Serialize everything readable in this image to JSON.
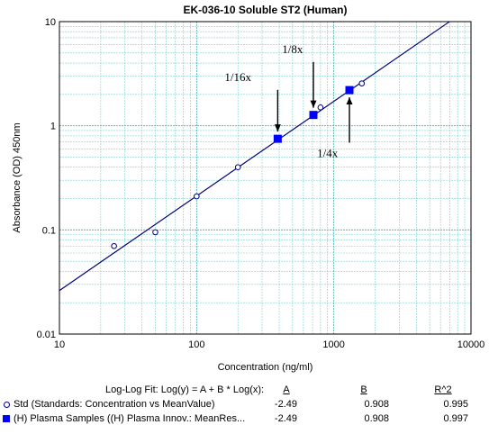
{
  "chart_data": {
    "type": "scatter",
    "title": "EK-036-10 Soluble ST2 (Human)",
    "xlabel": "Concentration (ng/ml)",
    "ylabel": "Absorbance (OD) 450nm",
    "xscale": "log",
    "yscale": "log",
    "xlim": [
      10,
      10000
    ],
    "ylim": [
      0.01,
      10
    ],
    "x_ticks": [
      "10",
      "100",
      "1000",
      "10000"
    ],
    "y_ticks": [
      "0.01",
      "0.1",
      "1",
      "10"
    ],
    "grid": true,
    "series": [
      {
        "name": "Std (Standards: Concentration vs MeanValue)",
        "marker": "open-circle",
        "color": "#000080",
        "x": [
          25,
          50,
          100,
          200,
          800,
          1600
        ],
        "y": [
          0.07,
          0.095,
          0.21,
          0.4,
          1.5,
          2.55
        ]
      },
      {
        "name": "(H) Plasma Samples ((H) Plasma Innov.: MeanRes...",
        "marker": "filled-square",
        "color": "#0000ff",
        "x": [
          390,
          710,
          1300
        ],
        "y": [
          0.75,
          1.27,
          2.2
        ]
      }
    ],
    "fit_lines": [
      {
        "A": -2.49,
        "B": 0.908,
        "color": "#000080"
      },
      {
        "A": -2.49,
        "B": 0.908,
        "color": "#000080"
      }
    ],
    "annotations": [
      {
        "text": "1/16x",
        "x": 390,
        "y": 0.75,
        "label_x": 200,
        "label_y": 2.7,
        "arrow": "down"
      },
      {
        "text": "1/8x",
        "x": 710,
        "y": 1.27,
        "label_x": 500,
        "label_y": 5.0,
        "arrow": "down"
      },
      {
        "text": "1/4x",
        "x": 1300,
        "y": 2.2,
        "label_x": 900,
        "label_y": 0.5,
        "arrow": "up"
      }
    ]
  },
  "fit_table": {
    "heading": "Log-Log Fit: Log(y) = A + B * Log(x):",
    "col_a": "A",
    "col_b": "B",
    "col_r2": "R^2",
    "rows": [
      {
        "label": "Std (Standards: Concentration vs MeanValue)",
        "a": "-2.49",
        "b": "0.908",
        "r2": "0.995"
      },
      {
        "label": "(H) Plasma Samples ((H) Plasma Innov.: MeanRes...",
        "a": "-2.49",
        "b": "0.908",
        "r2": "0.997"
      }
    ]
  }
}
